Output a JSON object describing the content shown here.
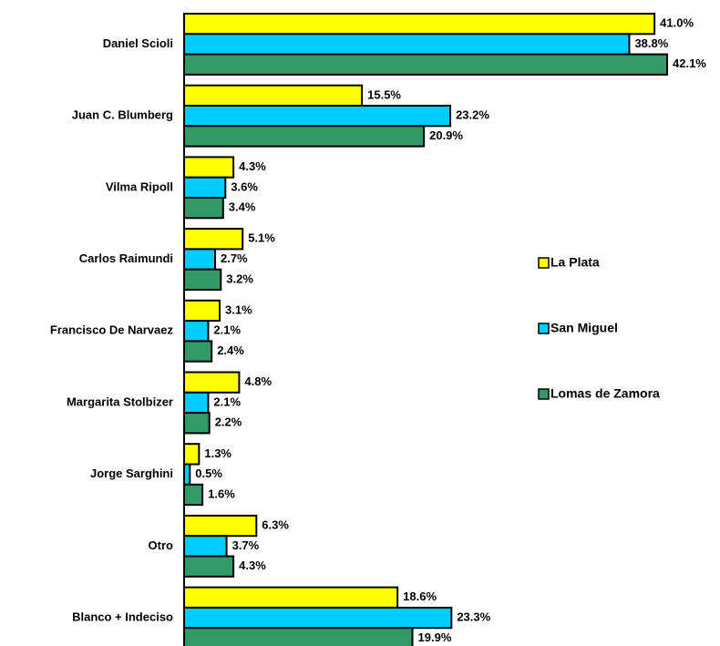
{
  "chart_data": {
    "type": "bar",
    "orientation": "horizontal",
    "categories": [
      "Daniel Scioli",
      "Juan C. Blumberg",
      "Vilma Ripoll",
      "Carlos Raimundi",
      "Francisco De Narvaez",
      "Margarita Stolbizer",
      "Jorge Sarghini",
      "Otro",
      "Blanco + Indeciso"
    ],
    "series": [
      {
        "name": "La Plata",
        "color": "#ffff00",
        "values": [
          41,
          15.5,
          4.3,
          5.1,
          3.1,
          4.8,
          1.3,
          6.3,
          18.6
        ],
        "value_labels": [
          "41.0%",
          "15.5%",
          "4.3%",
          "5.1%",
          "3.1%",
          "4.8%",
          "1.3%",
          "6.3%",
          "18.6%"
        ]
      },
      {
        "name": "San Miguel",
        "color": "#00ccff",
        "values": [
          38.8,
          23.2,
          3.6,
          2.7,
          2.1,
          2.1,
          0.5,
          3.7,
          23.3
        ],
        "value_labels": [
          "38.8%",
          "23.2%",
          "3.6%",
          "2.7%",
          "2.1%",
          "2.1%",
          "0.5%",
          "3.7%",
          "23.3%"
        ]
      },
      {
        "name": "Lomas de Zamora",
        "color": "#339966",
        "values": [
          42.1,
          20.9,
          3.4,
          3.2,
          2.4,
          2.2,
          1.6,
          4.3,
          19.9
        ],
        "value_labels": [
          "42.1%",
          "20.9%",
          "3.4%",
          "3.2%",
          "2.4%",
          "2.2%",
          "1.6%",
          "4.3%",
          "19.9%"
        ]
      }
    ],
    "legend": "right"
  }
}
